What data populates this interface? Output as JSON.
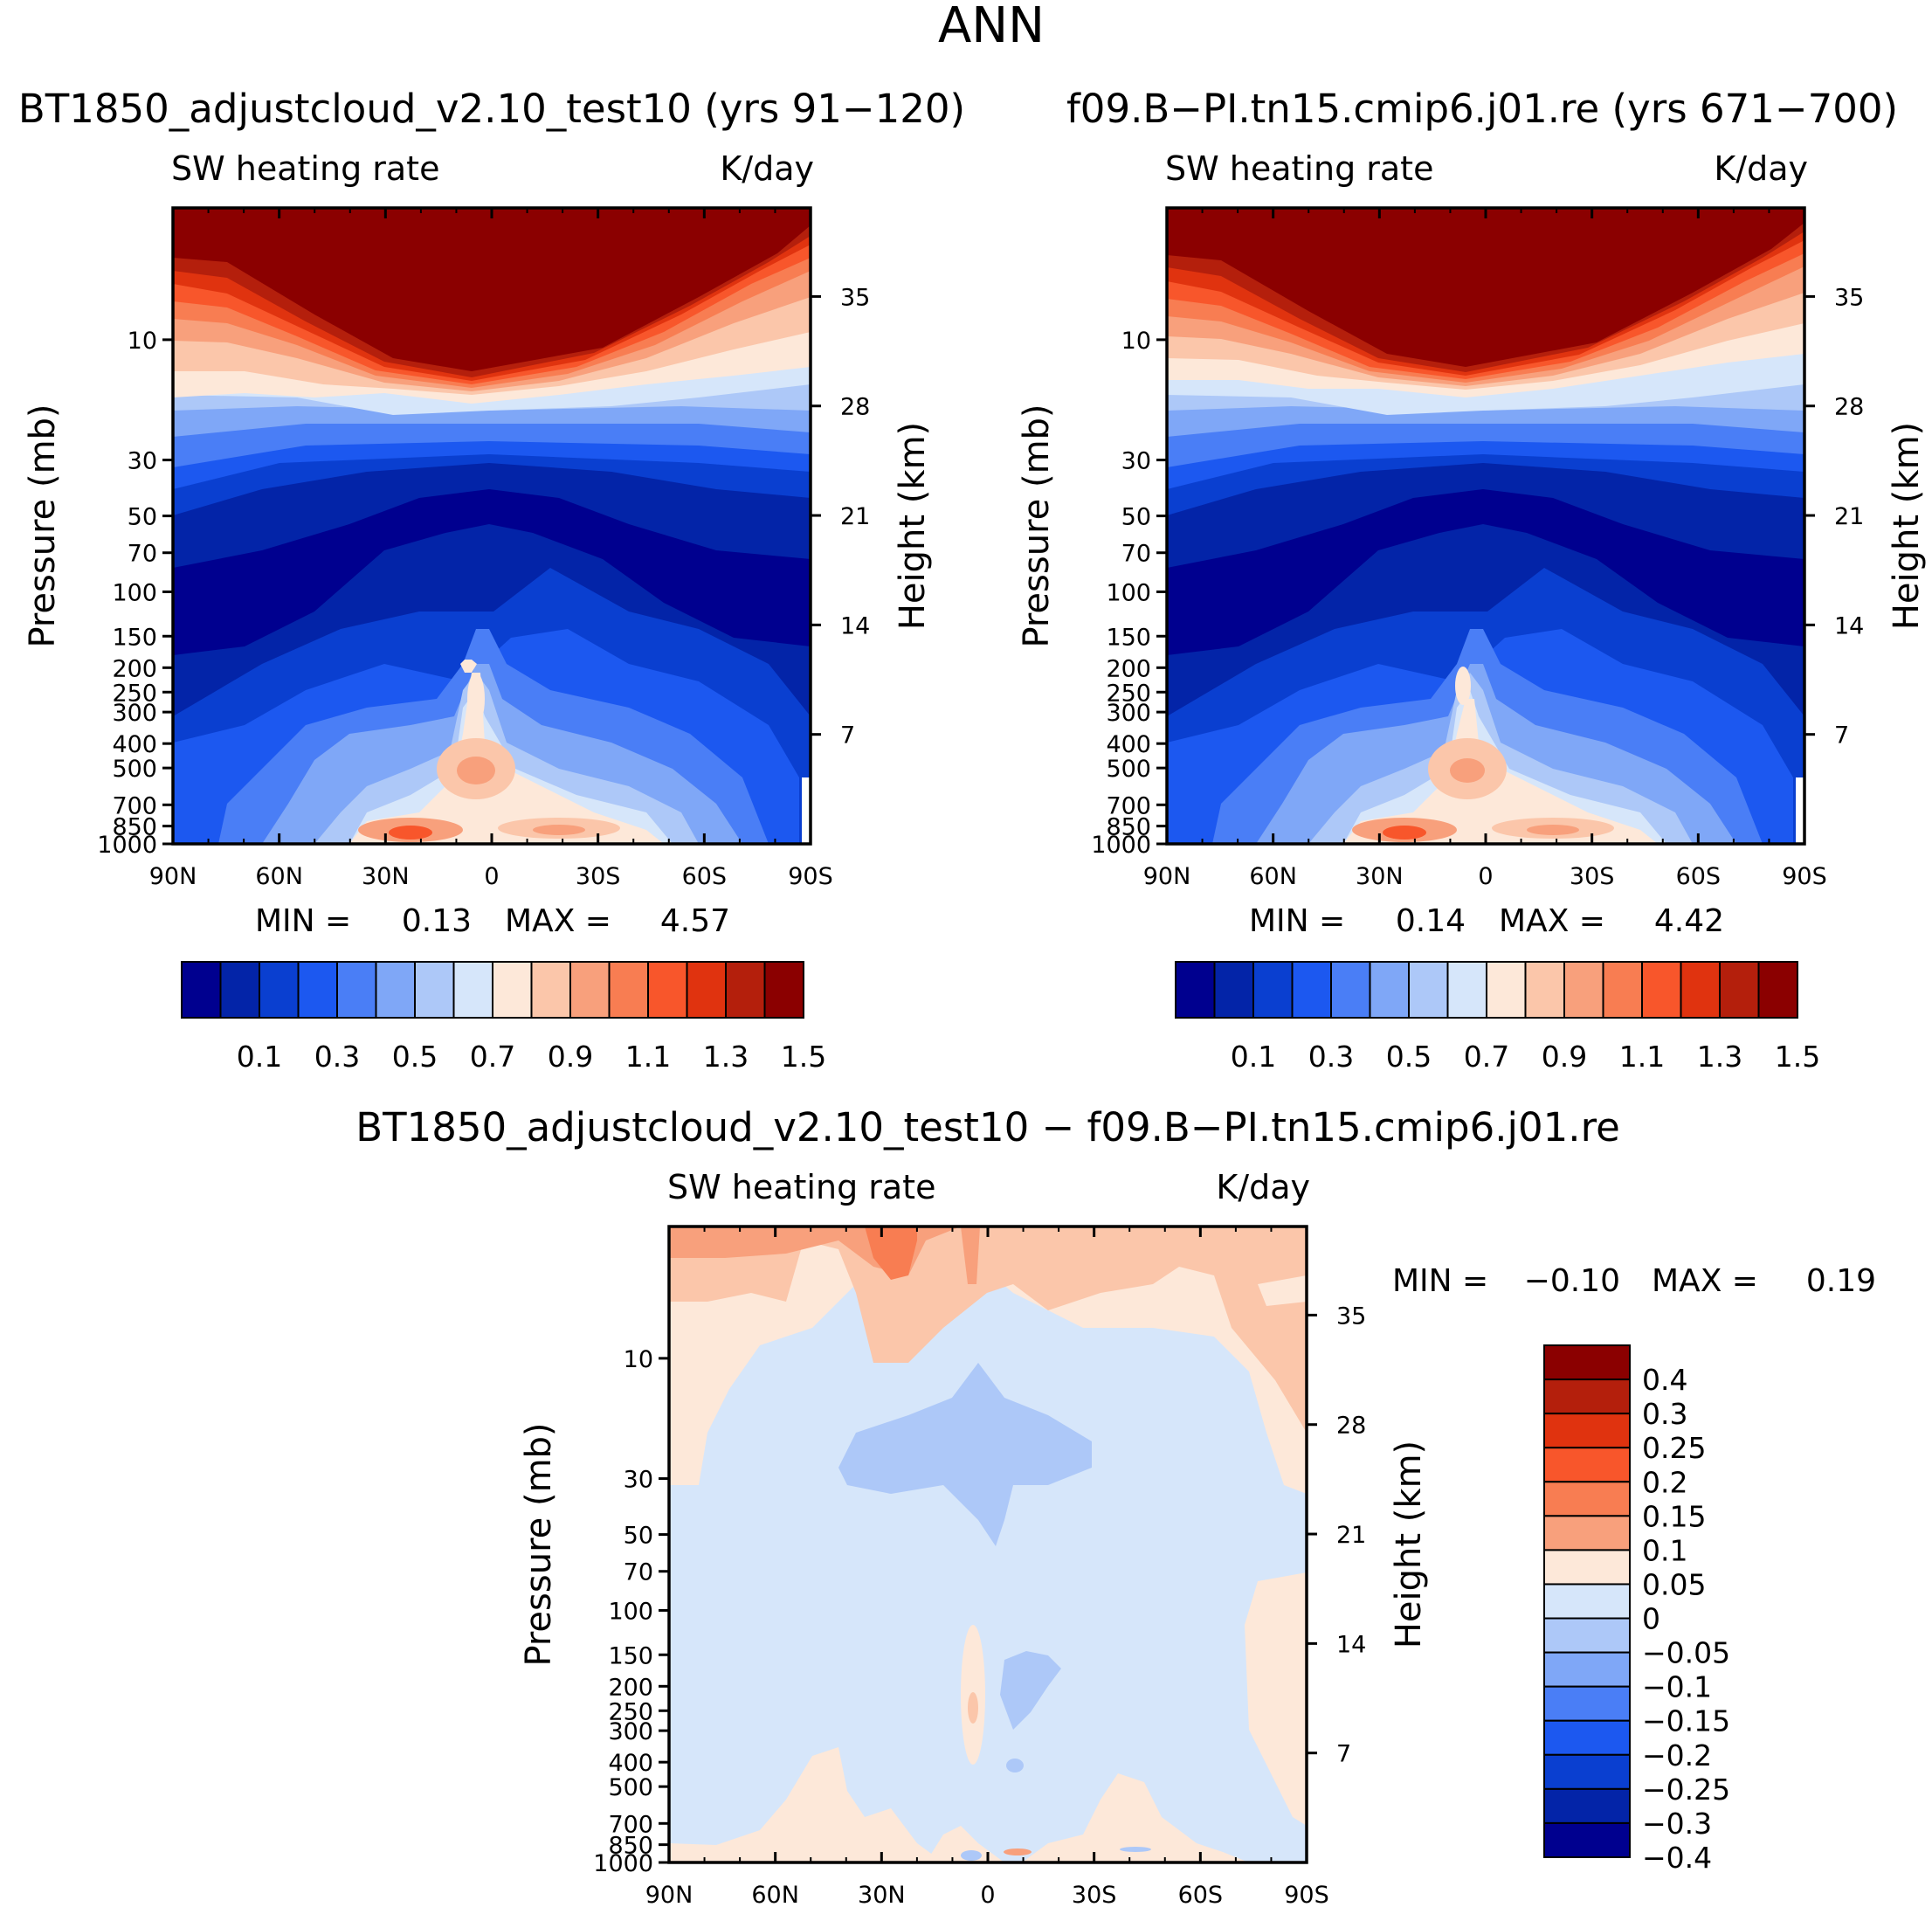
{
  "figure_title": "ANN",
  "chart_data": [
    {
      "type": "heatmap",
      "panel": "left",
      "title": "BT1850_adjustcloud_v2.10_test10 (yrs 91-120)",
      "left_string": "SW heating rate",
      "right_string": "K/day",
      "xlabel": "",
      "ylabel": "Pressure (mb)",
      "ylabel_right": "Height (km)",
      "x_ticks": [
        "90N",
        "60N",
        "30N",
        "0",
        "30S",
        "60S",
        "90S"
      ],
      "y_ticks": [
        "10",
        "30",
        "50",
        "70",
        "100",
        "150",
        "200",
        "250",
        "300",
        "400",
        "500",
        "700",
        "850",
        "1000"
      ],
      "y_ticks_right": [
        "35",
        "28",
        "21",
        "14",
        "7"
      ],
      "ylim": [
        1000,
        3
      ],
      "min_label": "MIN =",
      "min_value": "0.13",
      "max_label": "MAX =",
      "max_value": "4.57",
      "colorbar": {
        "orientation": "horizontal",
        "colors": [
          "#00008f",
          "#0324a8",
          "#0a3fd0",
          "#1c58f0",
          "#4a7ef6",
          "#7fa7f7",
          "#adc8f8",
          "#d6e6fa",
          "#fde8d9",
          "#fbc6aa",
          "#f8a07c",
          "#f87d52",
          "#f8562b",
          "#e0330f",
          "#b41f0c",
          "#8b0000"
        ],
        "labels": [
          "0.1",
          "0.3",
          "0.5",
          "0.7",
          "0.9",
          "1.1",
          "1.3",
          "1.5"
        ]
      }
    },
    {
      "type": "heatmap",
      "panel": "right",
      "title": "f09.B-PI.tn15.cmip6.j01.re (yrs 671-700)",
      "left_string": "SW heating rate",
      "right_string": "K/day",
      "xlabel": "",
      "ylabel": "Pressure (mb)",
      "ylabel_right": "Height (km)",
      "x_ticks": [
        "90N",
        "60N",
        "30N",
        "0",
        "30S",
        "60S",
        "90S"
      ],
      "y_ticks": [
        "10",
        "30",
        "50",
        "70",
        "100",
        "150",
        "200",
        "250",
        "300",
        "400",
        "500",
        "700",
        "850",
        "1000"
      ],
      "y_ticks_right": [
        "35",
        "28",
        "21",
        "14",
        "7"
      ],
      "ylim": [
        1000,
        3
      ],
      "min_label": "MIN =",
      "min_value": "0.14",
      "max_label": "MAX =",
      "max_value": "4.42",
      "colorbar": {
        "orientation": "horizontal",
        "colors": [
          "#00008f",
          "#0324a8",
          "#0a3fd0",
          "#1c58f0",
          "#4a7ef6",
          "#7fa7f7",
          "#adc8f8",
          "#d6e6fa",
          "#fde8d9",
          "#fbc6aa",
          "#f8a07c",
          "#f87d52",
          "#f8562b",
          "#e0330f",
          "#b41f0c",
          "#8b0000"
        ],
        "labels": [
          "0.1",
          "0.3",
          "0.5",
          "0.7",
          "0.9",
          "1.1",
          "1.3",
          "1.5"
        ]
      }
    },
    {
      "type": "heatmap",
      "panel": "difference",
      "title": "BT1850_adjustcloud_v2.10_test10 - f09.B-PI.tn15.cmip6.j01.re",
      "left_string": "SW heating rate",
      "right_string": "K/day",
      "xlabel": "",
      "ylabel": "Pressure (mb)",
      "ylabel_right": "Height (km)",
      "x_ticks": [
        "90N",
        "60N",
        "30N",
        "0",
        "30S",
        "60S",
        "90S"
      ],
      "y_ticks": [
        "10",
        "30",
        "50",
        "70",
        "100",
        "150",
        "200",
        "250",
        "300",
        "400",
        "500",
        "700",
        "850",
        "1000"
      ],
      "y_ticks_right": [
        "35",
        "28",
        "21",
        "14",
        "7"
      ],
      "ylim": [
        1000,
        3
      ],
      "min_label": "MIN =",
      "min_value": "-0.10",
      "max_label": "MAX =",
      "max_value": "0.19",
      "colorbar": {
        "orientation": "vertical",
        "colors": [
          "#8b0000",
          "#b41f0c",
          "#e0330f",
          "#f8562b",
          "#f87d52",
          "#f8a07c",
          "#fde8d9",
          "#d6e6fa",
          "#adc8f8",
          "#7fa7f7",
          "#4a7ef6",
          "#1c58f0",
          "#0a3fd0",
          "#0324a8",
          "#00008f"
        ],
        "labels": [
          "0.4",
          "0.3",
          "0.25",
          "0.2",
          "0.15",
          "0.1",
          "0.05",
          "0",
          "-0.05",
          "-0.1",
          "-0.15",
          "-0.2",
          "-0.25",
          "-0.3",
          "-0.4"
        ]
      }
    }
  ]
}
